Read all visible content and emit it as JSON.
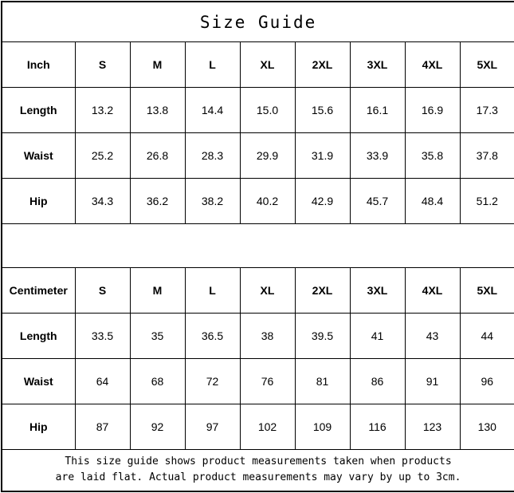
{
  "title": "Size Guide",
  "chart_data": [
    {
      "type": "table",
      "title": "Size Guide (Inch)",
      "unit_header": "Inch",
      "columns": [
        "S",
        "M",
        "L",
        "XL",
        "2XL",
        "3XL",
        "4XL",
        "5XL"
      ],
      "rows": [
        {
          "label": "Length",
          "values": [
            "13.2",
            "13.8",
            "14.4",
            "15.0",
            "15.6",
            "16.1",
            "16.9",
            "17.3"
          ]
        },
        {
          "label": "Waist",
          "values": [
            "25.2",
            "26.8",
            "28.3",
            "29.9",
            "31.9",
            "33.9",
            "35.8",
            "37.8"
          ]
        },
        {
          "label": "Hip",
          "values": [
            "34.3",
            "36.2",
            "38.2",
            "40.2",
            "42.9",
            "45.7",
            "48.4",
            "51.2"
          ]
        }
      ]
    },
    {
      "type": "table",
      "title": "Size Guide (Centimeter)",
      "unit_header": "Centimeter",
      "columns": [
        "S",
        "M",
        "L",
        "XL",
        "2XL",
        "3XL",
        "4XL",
        "5XL"
      ],
      "rows": [
        {
          "label": "Length",
          "values": [
            "33.5",
            "35",
            "36.5",
            "38",
            "39.5",
            "41",
            "43",
            "44"
          ]
        },
        {
          "label": "Waist",
          "values": [
            "64",
            "68",
            "72",
            "76",
            "81",
            "86",
            "91",
            "96"
          ]
        },
        {
          "label": "Hip",
          "values": [
            "87",
            "92",
            "97",
            "102",
            "109",
            "116",
            "123",
            "130"
          ]
        }
      ]
    }
  ],
  "footer": {
    "line1": "This size guide shows product measurements taken when products",
    "line2": "are laid flat. Actual product measurements may vary by up to 3cm."
  }
}
